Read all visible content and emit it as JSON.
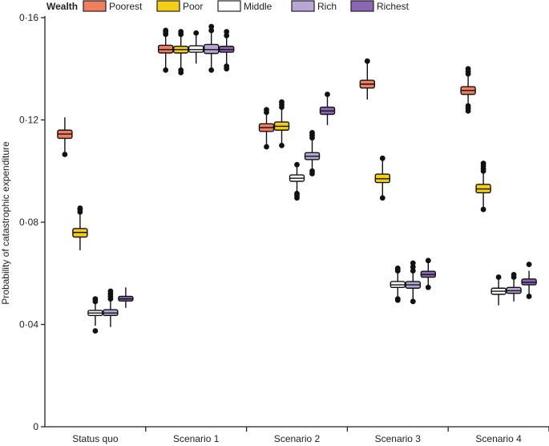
{
  "chart_data": {
    "type": "boxplot",
    "title": "",
    "xlabel": "",
    "ylabel": "Probability of catastrophic expenditure",
    "ylim": [
      0,
      0.16
    ],
    "yticks": [
      0,
      0.04,
      0.08,
      0.12,
      0.16
    ],
    "ytick_labels": [
      "0",
      "0·04",
      "0·08",
      "0·12",
      "0·16"
    ],
    "categories": [
      "Status quo",
      "Scenario 1",
      "Scenario 2",
      "Scenario 3",
      "Scenario 4"
    ],
    "legend_title": "Wealth",
    "legend_position": "top",
    "series": [
      {
        "name": "Poorest",
        "color": "#EF7F5E",
        "boxes": [
          {
            "min": 0.1075,
            "q1": 0.1128,
            "median": 0.1145,
            "q3": 0.116,
            "max": 0.121,
            "outliers": [
              0.1065
            ]
          },
          {
            "min": 0.14,
            "q1": 0.1462,
            "median": 0.1475,
            "q3": 0.1492,
            "max": 0.153,
            "outliers": [
              0.1395,
              0.1535,
              0.1545,
              0.155
            ]
          },
          {
            "min": 0.11,
            "q1": 0.1155,
            "median": 0.117,
            "q3": 0.1185,
            "max": 0.1225,
            "outliers": [
              0.1095,
              0.123,
              0.124
            ]
          },
          {
            "min": 0.128,
            "q1": 0.1325,
            "median": 0.134,
            "q3": 0.1355,
            "max": 0.1425,
            "outliers": [
              0.143
            ]
          },
          {
            "min": 0.1265,
            "q1": 0.13,
            "median": 0.1315,
            "q3": 0.133,
            "max": 0.1375,
            "outliers": [
              0.1235,
              0.1245,
              0.1255,
              0.138,
              0.139,
              0.14
            ]
          }
        ]
      },
      {
        "name": "Poor",
        "color": "#F5CF15",
        "boxes": [
          {
            "min": 0.069,
            "q1": 0.0742,
            "median": 0.076,
            "q3": 0.0775,
            "max": 0.0835,
            "outliers": [
              0.084,
              0.085,
              0.0855
            ]
          },
          {
            "min": 0.14,
            "q1": 0.1462,
            "median": 0.1475,
            "q3": 0.1488,
            "max": 0.1525,
            "outliers": [
              0.1385,
              0.1395,
              0.1535,
              0.1545
            ]
          },
          {
            "min": 0.1105,
            "q1": 0.116,
            "median": 0.1175,
            "q3": 0.1192,
            "max": 0.1245,
            "outliers": [
              0.11,
              0.125,
              0.126,
              0.127
            ]
          },
          {
            "min": 0.0905,
            "q1": 0.0955,
            "median": 0.097,
            "q3": 0.0988,
            "max": 0.1045,
            "outliers": [
              0.0895,
              0.105
            ]
          },
          {
            "min": 0.086,
            "q1": 0.0915,
            "median": 0.093,
            "q3": 0.0948,
            "max": 0.0995,
            "outliers": [
              0.085,
              0.1,
              0.101,
              0.102,
              0.103
            ]
          }
        ]
      },
      {
        "name": "Middle",
        "color": "#FFFFFF",
        "boxes": [
          {
            "min": 0.0395,
            "q1": 0.0435,
            "median": 0.0445,
            "q3": 0.0455,
            "max": 0.0485,
            "outliers": [
              0.0375,
              0.049,
              0.05
            ]
          },
          {
            "min": 0.142,
            "q1": 0.1465,
            "median": 0.1475,
            "q3": 0.149,
            "max": 0.153,
            "outliers": [
              0.154
            ]
          },
          {
            "min": 0.092,
            "q1": 0.096,
            "median": 0.0972,
            "q3": 0.0985,
            "max": 0.1015,
            "outliers": [
              0.0895,
              0.0905,
              0.0912,
              0.1025
            ]
          },
          {
            "min": 0.0505,
            "q1": 0.0545,
            "median": 0.0555,
            "q3": 0.0568,
            "max": 0.0605,
            "outliers": [
              0.0495,
              0.05,
              0.061,
              0.0615,
              0.062
            ]
          },
          {
            "min": 0.0475,
            "q1": 0.0518,
            "median": 0.053,
            "q3": 0.0542,
            "max": 0.058,
            "outliers": [
              0.0585
            ]
          }
        ]
      },
      {
        "name": "Rich",
        "color": "#B7A6D6",
        "boxes": [
          {
            "min": 0.039,
            "q1": 0.0435,
            "median": 0.0445,
            "q3": 0.0458,
            "max": 0.0495,
            "outliers": [
              0.05,
              0.051,
              0.052,
              0.053
            ]
          },
          {
            "min": 0.1405,
            "q1": 0.146,
            "median": 0.1475,
            "q3": 0.1495,
            "max": 0.1545,
            "outliers": [
              0.1395,
              0.155,
              0.1565
            ]
          },
          {
            "min": 0.1005,
            "q1": 0.1045,
            "median": 0.1058,
            "q3": 0.1072,
            "max": 0.1125,
            "outliers": [
              0.099,
              0.1,
              0.113,
              0.114,
              0.115
            ]
          },
          {
            "min": 0.05,
            "q1": 0.0542,
            "median": 0.0555,
            "q3": 0.0568,
            "max": 0.0605,
            "outliers": [
              0.049,
              0.061,
              0.0625,
              0.064
            ]
          },
          {
            "min": 0.049,
            "q1": 0.0522,
            "median": 0.0532,
            "q3": 0.0545,
            "max": 0.0575,
            "outliers": [
              0.0585,
              0.0595
            ]
          }
        ]
      },
      {
        "name": "Richest",
        "color": "#8B66B5",
        "boxes": [
          {
            "min": 0.0465,
            "q1": 0.0492,
            "median": 0.05,
            "q3": 0.051,
            "max": 0.0545,
            "outliers": []
          },
          {
            "min": 0.142,
            "q1": 0.1465,
            "median": 0.1475,
            "q3": 0.1488,
            "max": 0.1525,
            "outliers": [
              0.14,
              0.141,
              0.153,
              0.1545
            ]
          },
          {
            "min": 0.118,
            "q1": 0.1222,
            "median": 0.1235,
            "q3": 0.125,
            "max": 0.129,
            "outliers": [
              0.13
            ]
          },
          {
            "min": 0.0555,
            "q1": 0.0585,
            "median": 0.0595,
            "q3": 0.0608,
            "max": 0.064,
            "outliers": [
              0.0545,
              0.065
            ]
          },
          {
            "min": 0.052,
            "q1": 0.0555,
            "median": 0.0565,
            "q3": 0.0578,
            "max": 0.061,
            "outliers": [
              0.051,
              0.0635
            ]
          }
        ]
      }
    ]
  }
}
